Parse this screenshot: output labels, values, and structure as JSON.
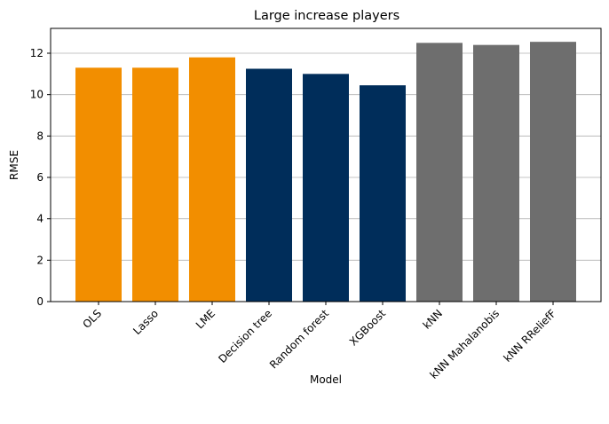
{
  "chart_data": {
    "type": "bar",
    "title": "Large increase players",
    "xlabel": "Model",
    "ylabel": "RMSE",
    "categories": [
      "OLS",
      "Lasso",
      "LME",
      "Decision tree",
      "Random forest",
      "XGBoost",
      "kNN",
      "kNN Mahalanobis",
      "kNN RReliefF"
    ],
    "values": [
      11.3,
      11.3,
      11.8,
      11.25,
      11.0,
      10.45,
      12.5,
      12.4,
      12.55
    ],
    "bar_colors": [
      "#f28e00",
      "#f28e00",
      "#f28e00",
      "#002d5a",
      "#002d5a",
      "#002d5a",
      "#6e6e6e",
      "#6e6e6e",
      "#6e6e6e"
    ],
    "ylim": [
      0,
      13.2
    ],
    "yticks": [
      0,
      2,
      4,
      6,
      8,
      10,
      12
    ],
    "grid": "horizontal",
    "legend": "none"
  }
}
